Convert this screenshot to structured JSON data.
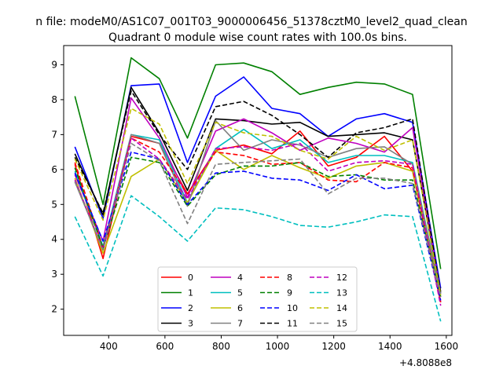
{
  "figure": {
    "suptitle": "n file: modeM0/AS1C07_001T03_9000006456_51378cztM0_level2_quad_clean",
    "title": "Quadrant 0 module wise count rates with 100.0s bins."
  },
  "chart_data": {
    "type": "line",
    "title": "Quadrant 0 module wise count rates with 100.0s bins.",
    "xlabel": "",
    "ylabel": "",
    "x_offset_label": "+4.8088e8",
    "x": [
      280,
      380,
      480,
      580,
      680,
      780,
      880,
      980,
      1080,
      1180,
      1280,
      1380,
      1480,
      1580
    ],
    "xlim": [
      240,
      1620
    ],
    "ylim": [
      1.25,
      9.55
    ],
    "xticks": [
      400,
      600,
      800,
      1000,
      1200,
      1400,
      1600
    ],
    "yticks": [
      2,
      3,
      4,
      5,
      6,
      7,
      8,
      9
    ],
    "grid": false,
    "legend": {
      "placement": "lower-center",
      "columns": 4
    },
    "series": [
      {
        "name": "0",
        "color": "#ff0000",
        "dash": "solid",
        "values": [
          6.15,
          3.45,
          6.95,
          6.75,
          5.3,
          6.55,
          6.7,
          6.45,
          7.1,
          6.1,
          6.35,
          6.95,
          5.95,
          2.2
        ]
      },
      {
        "name": "1",
        "color": "#008000",
        "dash": "solid",
        "values": [
          8.1,
          5.0,
          9.2,
          8.6,
          6.9,
          9.0,
          9.05,
          8.8,
          8.15,
          8.35,
          8.5,
          8.45,
          8.15,
          3.15
        ]
      },
      {
        "name": "2",
        "color": "#0000ff",
        "dash": "solid",
        "values": [
          6.65,
          4.6,
          8.4,
          8.45,
          6.2,
          8.1,
          8.65,
          7.75,
          7.6,
          6.95,
          7.45,
          7.6,
          7.35,
          2.6
        ]
      },
      {
        "name": "3",
        "color": "#000000",
        "dash": "solid",
        "values": [
          6.45,
          4.7,
          8.35,
          7.05,
          5.4,
          7.45,
          7.4,
          7.3,
          7.35,
          6.95,
          7.0,
          7.05,
          6.85,
          2.5
        ]
      },
      {
        "name": "4",
        "color": "#bf00bf",
        "dash": "solid",
        "values": [
          5.85,
          3.95,
          8.05,
          6.9,
          5.2,
          7.1,
          7.45,
          7.05,
          6.55,
          6.9,
          6.75,
          6.5,
          7.2,
          2.45
        ]
      },
      {
        "name": "5",
        "color": "#00bfbf",
        "dash": "solid",
        "values": [
          5.95,
          3.8,
          7.0,
          6.85,
          5.05,
          6.6,
          7.15,
          6.6,
          6.85,
          6.2,
          6.4,
          6.4,
          6.2,
          2.45
        ]
      },
      {
        "name": "6",
        "color": "#bfbf00",
        "dash": "solid",
        "values": [
          5.75,
          3.6,
          5.8,
          6.3,
          5.05,
          6.55,
          6.0,
          6.4,
          6.05,
          5.75,
          6.1,
          6.2,
          5.95,
          2.35
        ]
      },
      {
        "name": "7",
        "color": "#808080",
        "dash": "solid",
        "values": [
          5.65,
          3.7,
          7.0,
          6.75,
          4.95,
          7.4,
          6.55,
          6.85,
          6.7,
          6.35,
          6.6,
          6.65,
          6.15,
          2.45
        ]
      },
      {
        "name": "8",
        "color": "#ff0000",
        "dash": "dashed",
        "values": [
          6.2,
          3.75,
          6.9,
          6.5,
          5.3,
          6.5,
          6.4,
          6.15,
          6.2,
          5.7,
          5.65,
          6.2,
          6.05,
          2.2
        ]
      },
      {
        "name": "9",
        "color": "#008000",
        "dash": "dashed",
        "values": [
          6.05,
          3.75,
          6.35,
          6.2,
          4.95,
          5.85,
          6.1,
          6.1,
          6.2,
          5.8,
          5.85,
          5.7,
          5.7,
          2.35
        ]
      },
      {
        "name": "10",
        "color": "#0000ff",
        "dash": "dashed",
        "values": [
          5.9,
          3.95,
          6.5,
          6.3,
          5.0,
          5.9,
          5.95,
          5.75,
          5.7,
          5.4,
          5.85,
          5.45,
          5.55,
          2.25
        ]
      },
      {
        "name": "11",
        "color": "#000000",
        "dash": "dashed",
        "values": [
          6.35,
          4.75,
          8.25,
          7.0,
          6.0,
          7.8,
          7.95,
          7.55,
          7.0,
          6.35,
          7.05,
          7.2,
          7.45,
          2.45
        ]
      },
      {
        "name": "12",
        "color": "#bf00bf",
        "dash": "dashed",
        "values": [
          5.7,
          3.7,
          6.9,
          6.3,
          5.15,
          6.6,
          6.65,
          6.55,
          6.75,
          5.95,
          6.2,
          6.25,
          6.15,
          2.1
        ]
      },
      {
        "name": "13",
        "color": "#00bfbf",
        "dash": "dashed",
        "values": [
          4.65,
          2.95,
          5.25,
          4.65,
          3.95,
          4.9,
          4.85,
          4.65,
          4.4,
          4.35,
          4.5,
          4.7,
          4.65,
          1.65
        ]
      },
      {
        "name": "14",
        "color": "#bfbf00",
        "dash": "dashed",
        "values": [
          6.3,
          4.55,
          7.75,
          7.3,
          5.6,
          7.35,
          7.05,
          6.95,
          6.55,
          6.3,
          6.95,
          6.55,
          6.85,
          2.4
        ]
      },
      {
        "name": "15",
        "color": "#808080",
        "dash": "dashed",
        "values": [
          5.65,
          3.7,
          6.75,
          6.25,
          4.45,
          6.15,
          6.2,
          6.25,
          6.3,
          5.3,
          5.75,
          5.75,
          5.6,
          2.35
        ]
      }
    ]
  }
}
